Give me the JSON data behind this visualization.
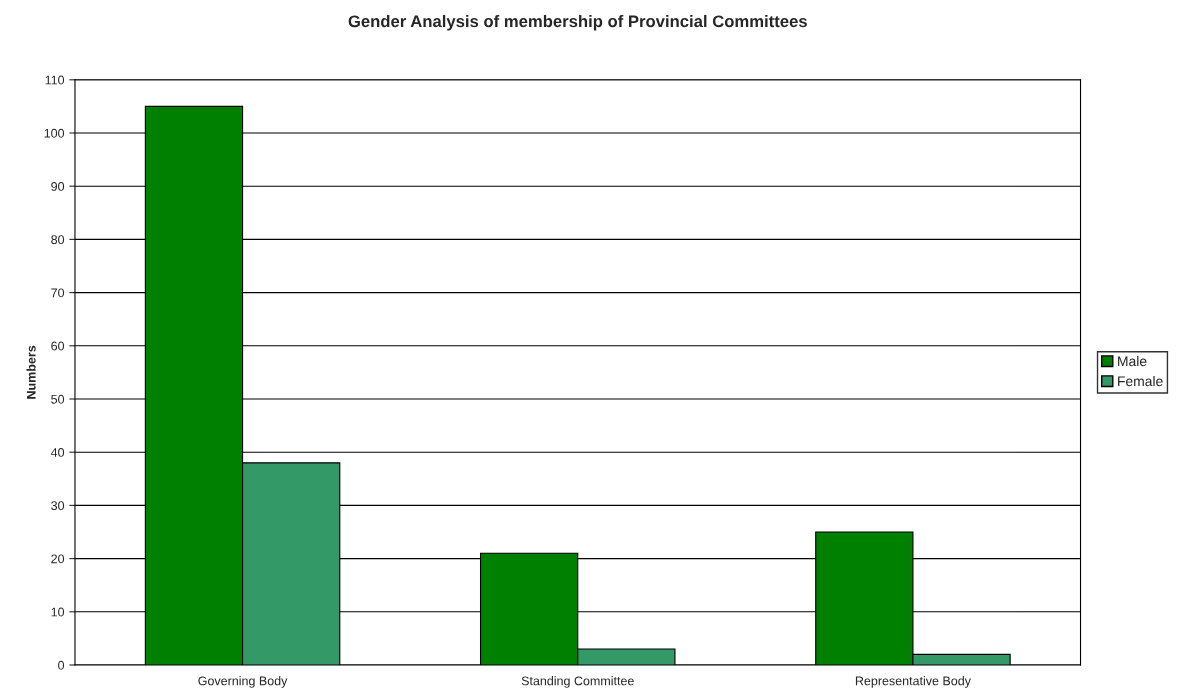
{
  "chart_data": {
    "type": "bar",
    "title": "Gender Analysis of membership of Provincial Committees",
    "ylabel": "Numbers",
    "categories": [
      "Governing Body",
      "Standing Committee",
      "Representative Body"
    ],
    "series": [
      {
        "name": "Male",
        "color": "#008000",
        "values": [
          105,
          21,
          25
        ]
      },
      {
        "name": "Female",
        "color": "#339966",
        "values": [
          38,
          3,
          2
        ]
      }
    ],
    "ylim": [
      0,
      110
    ],
    "yticks": [
      0,
      10,
      20,
      30,
      40,
      50,
      60,
      70,
      80,
      90,
      100,
      110
    ],
    "grid": "y",
    "legend": "right"
  }
}
